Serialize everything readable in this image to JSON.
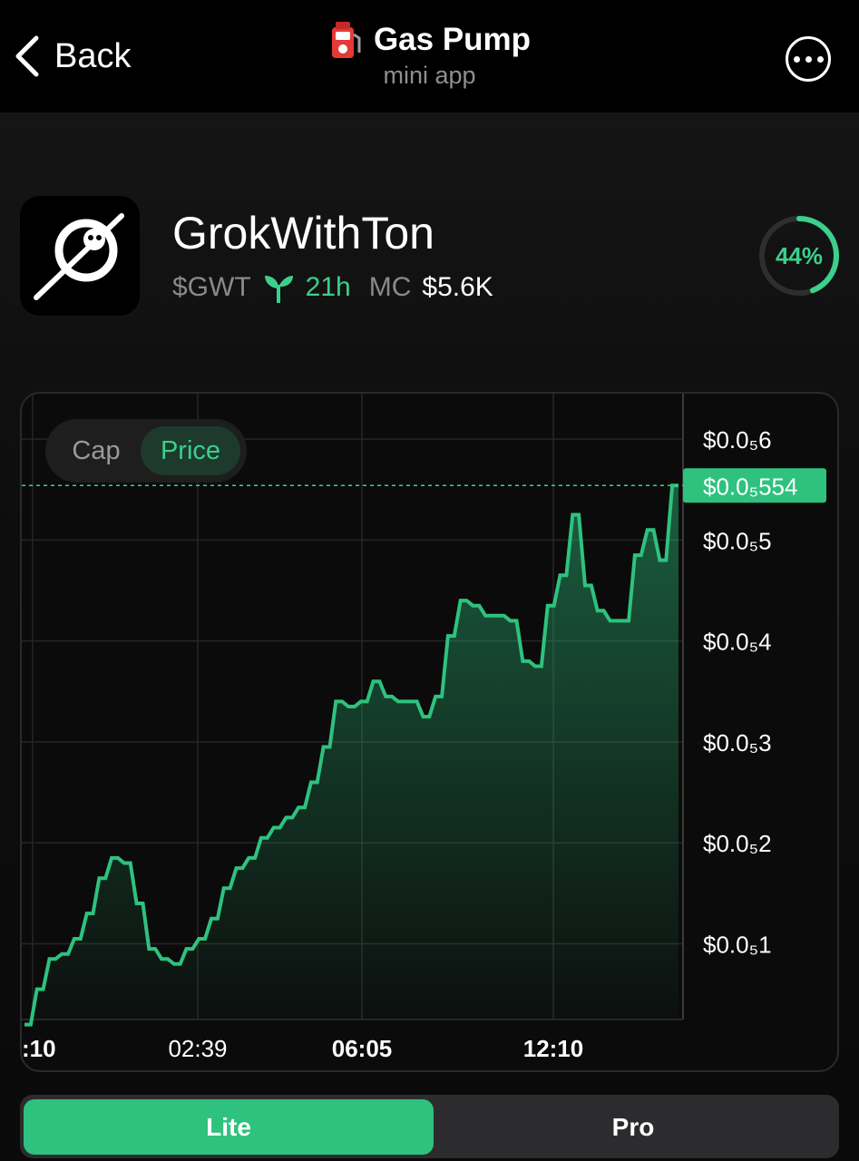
{
  "header": {
    "back_label": "Back",
    "app_title": "Gas Pump",
    "app_subtitle": "mini app",
    "app_icon": "gas-pump-icon",
    "more_icon": "more-icon"
  },
  "token": {
    "name": "GrokWithTon",
    "ticker": "$GWT",
    "age": "21h",
    "mc_label": "MC",
    "mc_value": "$5.6K",
    "progress_percent": 44,
    "progress_label": "44%"
  },
  "chart_toggle": {
    "cap_label": "Cap",
    "price_label": "Price",
    "selected": "Price"
  },
  "chart_data": {
    "type": "line",
    "title": "",
    "xlabel": "",
    "ylabel": "",
    "x_tick_labels": [
      ":10",
      "02:39",
      "06:05",
      "12:10"
    ],
    "y_tick_labels": [
      "$0.0₅6",
      "$0.0₅5",
      "$0.0₅4",
      "$0.0₅3",
      "$0.0₅2",
      "$0.0₅1"
    ],
    "y_tick_values": [
      6,
      5,
      4,
      3,
      2,
      1
    ],
    "current_price_label": "$0.0₅554",
    "current_price_value": 5.54,
    "ylim": [
      0.25,
      6.45
    ],
    "series": [
      {
        "values": [
          0.2,
          0.2,
          0.55,
          0.55,
          0.85,
          0.85,
          0.9,
          0.9,
          1.05,
          1.05,
          1.3,
          1.3,
          1.65,
          1.65,
          1.85,
          1.85,
          1.8,
          1.8,
          1.4,
          1.4,
          0.95,
          0.95,
          0.85,
          0.85,
          0.8,
          0.8,
          0.95,
          0.95,
          1.05,
          1.05,
          1.25,
          1.25,
          1.55,
          1.55,
          1.75,
          1.75,
          1.85,
          1.85,
          2.05,
          2.05,
          2.15,
          2.15,
          2.25,
          2.25,
          2.35,
          2.35,
          2.6,
          2.6,
          2.95,
          2.95,
          3.4,
          3.4,
          3.35,
          3.35,
          3.4,
          3.4,
          3.6,
          3.6,
          3.45,
          3.45,
          3.4,
          3.4,
          3.4,
          3.4,
          3.25,
          3.25,
          3.45,
          3.45,
          4.05,
          4.05,
          4.4,
          4.4,
          4.35,
          4.35,
          4.25,
          4.25,
          4.25,
          4.25,
          4.2,
          4.2,
          3.8,
          3.8,
          3.75,
          3.75,
          4.35,
          4.35,
          4.65,
          4.65,
          5.25,
          5.25,
          4.55,
          4.55,
          4.3,
          4.3,
          4.2,
          4.2,
          4.2,
          4.2,
          4.85,
          4.85,
          5.1,
          5.1,
          4.8,
          4.8,
          5.54,
          5.54
        ],
        "color": "#2ec27e"
      }
    ],
    "grid": true,
    "legend": "none"
  },
  "mode_switch": {
    "lite_label": "Lite",
    "pro_label": "Pro",
    "selected": "Lite"
  }
}
